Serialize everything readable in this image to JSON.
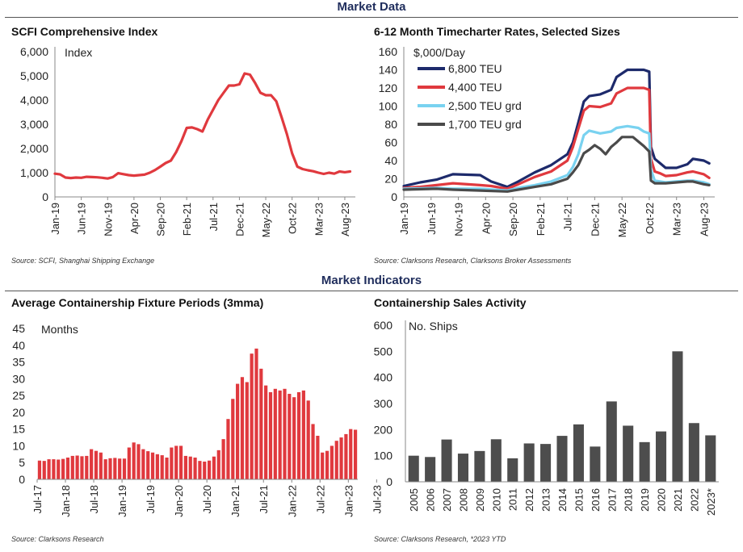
{
  "header": {
    "market_data": "Market Data",
    "market_indicators": "Market Indicators"
  },
  "colors": {
    "red": "#e0393e",
    "navy": "#1d2a6b",
    "lightblue": "#79d2f0",
    "grey": "#4a4a4a",
    "bar_red": "#e0393e",
    "bar_grey": "#4d4d4d"
  },
  "chart_data": [
    {
      "type": "line",
      "title": "SCFI Comprehensive Index",
      "ylabel": "Index",
      "ylim": [
        0,
        6000
      ],
      "yticks": [
        "0",
        "1,000",
        "2,000",
        "3,000",
        "4,000",
        "5,000",
        "6,000"
      ],
      "xticks": [
        "Jan-19",
        "Jun-19",
        "Nov-19",
        "Apr-20",
        "Sep-20",
        "Feb-21",
        "Jul-21",
        "Dec-21",
        "May-22",
        "Oct-22",
        "Mar-23",
        "Aug-23"
      ],
      "x_start": "Jan-19",
      "x_end": "Sep-23",
      "series": [
        {
          "values": [
            [
              0,
              960
            ],
            [
              1,
              930
            ],
            [
              2,
              800
            ],
            [
              3,
              780
            ],
            [
              4,
              800
            ],
            [
              5,
              790
            ],
            [
              6,
              830
            ],
            [
              7,
              820
            ],
            [
              8,
              810
            ],
            [
              9,
              790
            ],
            [
              10,
              760
            ],
            [
              11,
              820
            ],
            [
              12,
              980
            ],
            [
              13,
              940
            ],
            [
              14,
              900
            ],
            [
              15,
              880
            ],
            [
              16,
              900
            ],
            [
              17,
              920
            ],
            [
              18,
              1000
            ],
            [
              19,
              1110
            ],
            [
              20,
              1250
            ],
            [
              21,
              1400
            ],
            [
              22,
              1500
            ],
            [
              23,
              1850
            ],
            [
              24,
              2300
            ],
            [
              25,
              2850
            ],
            [
              26,
              2870
            ],
            [
              27,
              2800
            ],
            [
              28,
              2700
            ],
            [
              29,
              3200
            ],
            [
              30,
              3600
            ],
            [
              31,
              4000
            ],
            [
              32,
              4300
            ],
            [
              33,
              4600
            ],
            [
              34,
              4600
            ],
            [
              35,
              4650
            ],
            [
              36,
              5100
            ],
            [
              37,
              5050
            ],
            [
              38,
              4700
            ],
            [
              39,
              4300
            ],
            [
              40,
              4200
            ],
            [
              41,
              4200
            ],
            [
              42,
              3950
            ],
            [
              43,
              3300
            ],
            [
              44,
              2600
            ],
            [
              45,
              1800
            ],
            [
              46,
              1250
            ],
            [
              47,
              1150
            ],
            [
              48,
              1100
            ],
            [
              49,
              1060
            ],
            [
              50,
              1000
            ],
            [
              51,
              950
            ],
            [
              52,
              1000
            ],
            [
              53,
              960
            ],
            [
              54,
              1050
            ],
            [
              55,
              1020
            ],
            [
              56,
              1050
            ]
          ]
        }
      ],
      "source": "Source: SCFI, Shanghai Shipping Exchange"
    },
    {
      "type": "line",
      "title": "6-12 Month Timecharter Rates, Selected Sizes",
      "ylabel": "$,000/Day",
      "ylim": [
        0,
        160
      ],
      "yticks": [
        "0",
        "20",
        "40",
        "60",
        "80",
        "100",
        "120",
        "140",
        "160"
      ],
      "xticks": [
        "Jan-19",
        "Jun-19",
        "Nov-19",
        "Apr-20",
        "Sep-20",
        "Feb-21",
        "Jul-21",
        "Dec-21",
        "May-22",
        "Oct-22",
        "Mar-23",
        "Aug-23"
      ],
      "x_start": "Jan-19",
      "x_end": "Sep-23",
      "legend": "top-left",
      "series": [
        {
          "name": "6,800 TEU",
          "color": "#1d2a6b",
          "values": [
            [
              0,
              12
            ],
            [
              3,
              16
            ],
            [
              6,
              19
            ],
            [
              9,
              25
            ],
            [
              14,
              24
            ],
            [
              16,
              17
            ],
            [
              19,
              11
            ],
            [
              21,
              17
            ],
            [
              24,
              27
            ],
            [
              27,
              35
            ],
            [
              30,
              47
            ],
            [
              31,
              60
            ],
            [
              32,
              82
            ],
            [
              33,
              105
            ],
            [
              34,
              111
            ],
            [
              36,
              113
            ],
            [
              38,
              118
            ],
            [
              39,
              132
            ],
            [
              41,
              140
            ],
            [
              44,
              140
            ],
            [
              45,
              138
            ],
            [
              45.3,
              55
            ],
            [
              46,
              42
            ],
            [
              47,
              37
            ],
            [
              48,
              32
            ],
            [
              50,
              32
            ],
            [
              52,
              36
            ],
            [
              53,
              42
            ],
            [
              55,
              40
            ],
            [
              56,
              37
            ]
          ]
        },
        {
          "name": "4,400 TEU",
          "color": "#e0393e",
          "values": [
            [
              0,
              10
            ],
            [
              3,
              11
            ],
            [
              6,
              13
            ],
            [
              9,
              15
            ],
            [
              14,
              13
            ],
            [
              16,
              12
            ],
            [
              19,
              9
            ],
            [
              21,
              14
            ],
            [
              24,
              22
            ],
            [
              27,
              28
            ],
            [
              30,
              40
            ],
            [
              31,
              55
            ],
            [
              32,
              75
            ],
            [
              33,
              95
            ],
            [
              34,
              100
            ],
            [
              36,
              99
            ],
            [
              38,
              103
            ],
            [
              39,
              114
            ],
            [
              41,
              120
            ],
            [
              44,
              120
            ],
            [
              45,
              118
            ],
            [
              45.3,
              42
            ],
            [
              46,
              28
            ],
            [
              47,
              26
            ],
            [
              48,
              23
            ],
            [
              50,
              24
            ],
            [
              52,
              27
            ],
            [
              53,
              28
            ],
            [
              55,
              25
            ],
            [
              56,
              21
            ]
          ]
        },
        {
          "name": "2,500 TEU grd",
          "color": "#79d2f0",
          "values": [
            [
              0,
              9
            ],
            [
              6,
              10
            ],
            [
              9,
              9
            ],
            [
              14,
              9
            ],
            [
              19,
              7
            ],
            [
              21,
              10
            ],
            [
              24,
              13
            ],
            [
              27,
              17
            ],
            [
              30,
              24
            ],
            [
              31,
              33
            ],
            [
              32,
              47
            ],
            [
              33,
              68
            ],
            [
              34,
              73
            ],
            [
              36,
              70
            ],
            [
              38,
              72
            ],
            [
              39,
              76
            ],
            [
              41,
              78
            ],
            [
              43,
              76
            ],
            [
              44,
              72
            ],
            [
              45,
              70
            ],
            [
              45.3,
              30
            ],
            [
              46,
              18
            ],
            [
              48,
              16
            ],
            [
              50,
              17
            ],
            [
              52,
              18
            ],
            [
              53,
              18
            ],
            [
              55,
              16
            ],
            [
              56,
              14
            ]
          ]
        },
        {
          "name": "1,700 TEU grd",
          "color": "#4a4a4a",
          "values": [
            [
              0,
              8
            ],
            [
              6,
              9
            ],
            [
              9,
              8
            ],
            [
              14,
              7
            ],
            [
              19,
              6
            ],
            [
              21,
              8
            ],
            [
              24,
              11
            ],
            [
              27,
              14
            ],
            [
              30,
              20
            ],
            [
              31,
              27
            ],
            [
              32,
              35
            ],
            [
              33,
              48
            ],
            [
              34,
              52
            ],
            [
              35,
              57
            ],
            [
              36,
              53
            ],
            [
              37,
              47
            ],
            [
              38,
              55
            ],
            [
              39,
              60
            ],
            [
              40,
              66
            ],
            [
              42,
              66
            ],
            [
              43,
              61
            ],
            [
              44,
              56
            ],
            [
              45,
              50
            ],
            [
              45.3,
              18
            ],
            [
              46,
              15
            ],
            [
              48,
              15
            ],
            [
              50,
              16
            ],
            [
              52,
              17
            ],
            [
              53,
              17
            ],
            [
              55,
              14
            ],
            [
              56,
              13
            ]
          ]
        }
      ],
      "source": "Source: Clarksons Research, Clarksons Broker Assessments"
    },
    {
      "type": "bar",
      "title": "Average Containership Fixture Periods (3mma)",
      "ylabel": "Months",
      "ylim": [
        0,
        45
      ],
      "yticks": [
        "0",
        "5",
        "10",
        "15",
        "20",
        "25",
        "30",
        "35",
        "40",
        "45"
      ],
      "xticks": [
        "Jul-17",
        "Jan-18",
        "Jul-18",
        "Jan-19",
        "Jul-19",
        "Jan-20",
        "Jul-20",
        "Jan-21",
        "Jul-21",
        "Jan-22",
        "Jul-22",
        "Jan-23",
        "Jul-23"
      ],
      "values": [
        5.6,
        5.5,
        6.0,
        6.0,
        5.9,
        6.1,
        6.5,
        7.0,
        7.1,
        6.9,
        7.0,
        9.0,
        8.5,
        8.0,
        6.0,
        6.3,
        6.4,
        6.2,
        6.2,
        9.5,
        11.0,
        10.5,
        9.0,
        8.4,
        8.0,
        7.5,
        7.2,
        6.5,
        9.5,
        10.0,
        10.0,
        7.0,
        6.8,
        6.5,
        5.5,
        5.3,
        5.6,
        6.8,
        8.7,
        12.0,
        18.0,
        24.0,
        28.5,
        30.5,
        29.0,
        37.5,
        39.0,
        33.0,
        28.0,
        26.0,
        27.0,
        26.5,
        27.0,
        25.5,
        24.5,
        26.0,
        26.5,
        23.5,
        16.5,
        13.0,
        8.0,
        8.5,
        10.0,
        11.5,
        12.5,
        13.5,
        15.0,
        14.8
      ],
      "source": "Source: Clarksons Research"
    },
    {
      "type": "bar",
      "title": "Containership Sales Activity",
      "ylabel": "No. Ships",
      "ylim": [
        0,
        600
      ],
      "yticks": [
        "0",
        "100",
        "200",
        "300",
        "400",
        "500",
        "600"
      ],
      "categories": [
        "2005",
        "2006",
        "2007",
        "2008",
        "2009",
        "2010",
        "2011",
        "2012",
        "2013",
        "2014",
        "2015",
        "2016",
        "2017",
        "2018",
        "2019",
        "2020",
        "2021",
        "2022",
        "2023*"
      ],
      "values": [
        100,
        95,
        162,
        108,
        118,
        163,
        90,
        147,
        145,
        176,
        220,
        135,
        308,
        215,
        152,
        193,
        500,
        225,
        178
      ],
      "source": "Source: Clarksons Research, *2023 YTD"
    }
  ]
}
